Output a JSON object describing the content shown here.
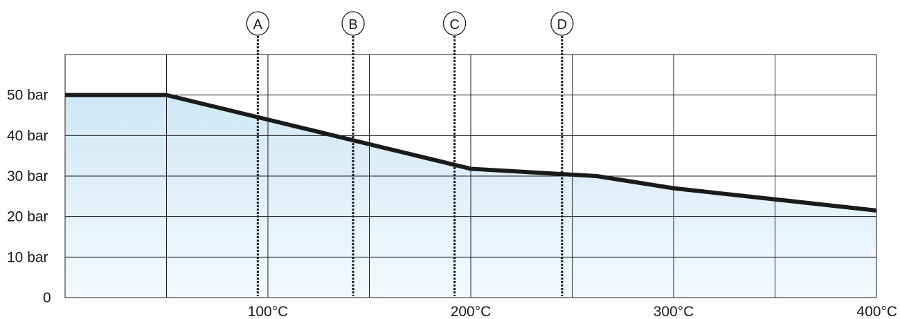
{
  "chart_data": {
    "type": "area",
    "title": "",
    "xlabel": "",
    "ylabel": "",
    "xlim": [
      0,
      400
    ],
    "ylim": [
      0,
      60
    ],
    "grid": true,
    "x_ticks": [
      {
        "value": 100,
        "label": "100°C"
      },
      {
        "value": 200,
        "label": "200°C"
      },
      {
        "value": 300,
        "label": "300°C"
      },
      {
        "value": 400,
        "label": "400°C"
      }
    ],
    "y_ticks": [
      {
        "value": 0,
        "label": "0"
      },
      {
        "value": 10,
        "label": "10 bar"
      },
      {
        "value": 20,
        "label": "20 bar"
      },
      {
        "value": 30,
        "label": "30 bar"
      },
      {
        "value": 40,
        "label": "40 bar"
      },
      {
        "value": 50,
        "label": "50 bar"
      }
    ],
    "x_gridlines": [
      50,
      100,
      150,
      200,
      250,
      300,
      350
    ],
    "y_gridlines": [
      10,
      20,
      30,
      40,
      50
    ],
    "series": [
      {
        "x": [
          0,
          50,
          200,
          262,
          300,
          400
        ],
        "values": [
          50,
          50,
          31.8,
          30,
          27,
          21.5
        ],
        "color": "#1a1a1a",
        "fill_top": "#cfe8f6",
        "fill_bottom": "#f4f9fd"
      }
    ],
    "markers": [
      {
        "label": "A",
        "x": 95
      },
      {
        "label": "B",
        "x": 142
      },
      {
        "label": "C",
        "x": 192
      },
      {
        "label": "D",
        "x": 245
      }
    ]
  }
}
